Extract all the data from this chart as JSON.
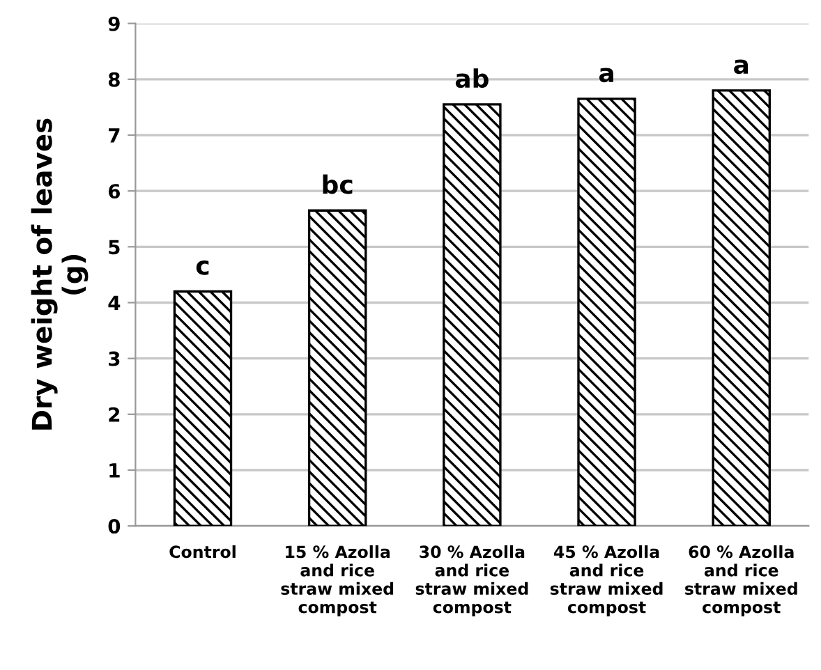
{
  "chart_data": {
    "type": "bar",
    "ylabel": "Dry weight of leaves\n(g)",
    "categories": [
      "Control",
      "15 % Azolla\nand rice\nstraw mixed\ncompost",
      "30 % Azolla\nand rice\nstraw mixed\ncompost",
      "45 % Azolla\nand rice\nstraw mixed\ncompost",
      "60 % Azolla\nand rice\nstraw mixed\ncompost"
    ],
    "values": [
      4.2,
      5.65,
      7.55,
      7.65,
      7.8
    ],
    "color": "#000000",
    "ylim": [
      0,
      9
    ],
    "yticks": [
      0,
      1,
      2,
      3,
      4,
      5,
      6,
      7,
      8,
      9
    ],
    "grid": "y",
    "annotations": [
      {
        "text": "c",
        "x": "Control",
        "y": 4.2
      },
      {
        "text": "bc",
        "x": "15 % Azolla\nand rice\nstraw mixed\ncompost",
        "y": 5.65
      },
      {
        "text": "ab",
        "x": "30 % Azolla\nand rice\nstraw mixed\ncompost",
        "y": 7.55
      },
      {
        "text": "a",
        "x": "45 % Azolla\nand rice\nstraw mixed\ncompost",
        "y": 7.65
      },
      {
        "text": "a",
        "x": "60 % Azolla\nand rice\nstraw mixed\ncompost",
        "y": 7.8
      }
    ]
  }
}
